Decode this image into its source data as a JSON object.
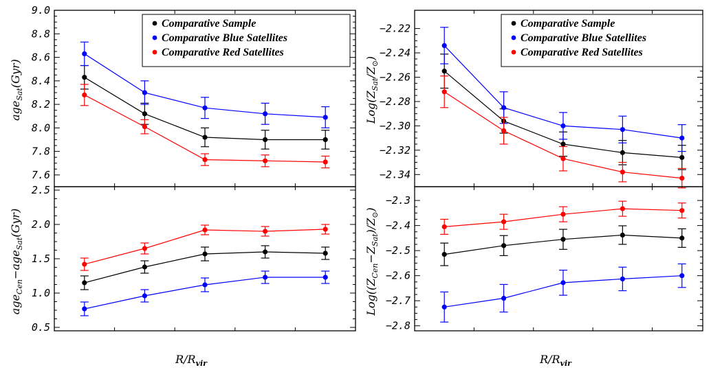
{
  "colors": {
    "comparative": "#000000",
    "blue": "#0000ff",
    "red": "#ff0000"
  },
  "legend": {
    "items": [
      {
        "label": "Comparative Sample",
        "color": "#000000"
      },
      {
        "label": "Comparative Blue Satellites",
        "color": "#0000ff"
      },
      {
        "label": "Comparative Red Satellites",
        "color": "#ff0000"
      }
    ]
  },
  "chart_data": [
    {
      "type": "line",
      "id": "age_sat",
      "ylabel": "age_Sat(Gyr)",
      "xlabel": "",
      "ylim": [
        7.5,
        9.0
      ],
      "yticks": [
        7.6,
        7.8,
        8.0,
        8.2,
        8.4,
        8.6,
        8.8,
        9.0
      ],
      "ytick_labels": [
        "7.6",
        "7.8",
        "8.0",
        "8.2",
        "8.4",
        "8.6",
        "8.8",
        "9.0"
      ],
      "x": [
        1,
        2,
        3,
        4,
        5
      ],
      "legend": "top-right",
      "series": [
        {
          "name": "Comparative Sample",
          "color": "#000000",
          "values": [
            8.43,
            8.12,
            7.92,
            7.9,
            7.9
          ],
          "errors": [
            0.1,
            0.09,
            0.08,
            0.08,
            0.08
          ]
        },
        {
          "name": "Comparative Blue Satellites",
          "color": "#0000ff",
          "values": [
            8.63,
            8.3,
            8.17,
            8.12,
            8.09
          ],
          "errors": [
            0.1,
            0.1,
            0.09,
            0.09,
            0.09
          ]
        },
        {
          "name": "Comparative Red Satellites",
          "color": "#ff0000",
          "values": [
            8.28,
            8.01,
            7.73,
            7.72,
            7.71
          ],
          "errors": [
            0.09,
            0.06,
            0.05,
            0.05,
            0.05
          ]
        }
      ]
    },
    {
      "type": "line",
      "id": "age_diff",
      "ylabel": "age_Cen − age_Sat(Gyr)",
      "xlabel": "R/R_vir",
      "ylim": [
        0.45,
        2.55
      ],
      "yticks": [
        0.5,
        1.0,
        1.5,
        2.0,
        2.5
      ],
      "ytick_labels": [
        "0.5",
        "1.0",
        "1.5",
        "2.0",
        "2.5"
      ],
      "x": [
        1,
        2,
        3,
        4,
        5
      ],
      "series": [
        {
          "name": "Comparative Sample",
          "color": "#000000",
          "values": [
            1.15,
            1.38,
            1.57,
            1.6,
            1.58
          ],
          "errors": [
            0.1,
            0.09,
            0.1,
            0.09,
            0.09
          ]
        },
        {
          "name": "Comparative Blue Satellites",
          "color": "#0000ff",
          "values": [
            0.77,
            0.96,
            1.12,
            1.23,
            1.23
          ],
          "errors": [
            0.1,
            0.09,
            0.1,
            0.09,
            0.09
          ]
        },
        {
          "name": "Comparative Red Satellites",
          "color": "#ff0000",
          "values": [
            1.42,
            1.65,
            1.92,
            1.9,
            1.93
          ],
          "errors": [
            0.09,
            0.08,
            0.07,
            0.07,
            0.07
          ]
        }
      ]
    },
    {
      "type": "line",
      "id": "z_sat",
      "ylabel": "Log(Z_Sat/Z_⊙)",
      "xlabel": "",
      "ylim": [
        -2.35,
        -2.205
      ],
      "yticks": [
        -2.34,
        -2.32,
        -2.3,
        -2.28,
        -2.26,
        -2.24,
        -2.22
      ],
      "ytick_labels": [
        "−2.34",
        "−2.32",
        "−2.30",
        "−2.28",
        "−2.26",
        "−2.24",
        "−2.22"
      ],
      "x": [
        1,
        2,
        3,
        4,
        5
      ],
      "legend": "top-right",
      "series": [
        {
          "name": "Comparative Sample",
          "color": "#000000",
          "values": [
            -2.255,
            -2.296,
            -2.315,
            -2.322,
            -2.326
          ],
          "errors": [
            0.014,
            0.01,
            0.01,
            0.01,
            0.01
          ]
        },
        {
          "name": "Comparative Blue Satellites",
          "color": "#0000ff",
          "values": [
            -2.234,
            -2.285,
            -2.3,
            -2.303,
            -2.31
          ],
          "errors": [
            0.015,
            0.013,
            0.011,
            0.011,
            0.011
          ]
        },
        {
          "name": "Comparative Red Satellites",
          "color": "#ff0000",
          "values": [
            -2.272,
            -2.304,
            -2.327,
            -2.338,
            -2.343
          ],
          "errors": [
            0.013,
            0.011,
            0.01,
            0.008,
            0.008
          ]
        }
      ]
    },
    {
      "type": "line",
      "id": "z_diff",
      "ylabel": "Log((Z_Cen − Z_Sat)/Z_⊙)",
      "xlabel": "R/R_vir",
      "ylim": [
        -2.82,
        -2.245
      ],
      "yticks": [
        -2.8,
        -2.7,
        -2.6,
        -2.5,
        -2.4,
        -2.3
      ],
      "ytick_labels": [
        "−2.8",
        "−2.7",
        "−2.6",
        "−2.5",
        "−2.4",
        "−2.3"
      ],
      "x": [
        1,
        2,
        3,
        4,
        5
      ],
      "series": [
        {
          "name": "Comparative Sample",
          "color": "#000000",
          "values": [
            -2.515,
            -2.48,
            -2.455,
            -2.438,
            -2.45
          ],
          "errors": [
            0.045,
            0.04,
            0.04,
            0.037,
            0.037
          ]
        },
        {
          "name": "Comparative Blue Satellites",
          "color": "#0000ff",
          "values": [
            -2.725,
            -2.69,
            -2.628,
            -2.613,
            -2.6
          ],
          "errors": [
            0.06,
            0.055,
            0.05,
            0.047,
            0.047
          ]
        },
        {
          "name": "Comparative Red Satellites",
          "color": "#ff0000",
          "values": [
            -2.405,
            -2.385,
            -2.355,
            -2.333,
            -2.34
          ],
          "errors": [
            0.03,
            0.03,
            0.03,
            0.03,
            0.03
          ]
        }
      ]
    }
  ]
}
